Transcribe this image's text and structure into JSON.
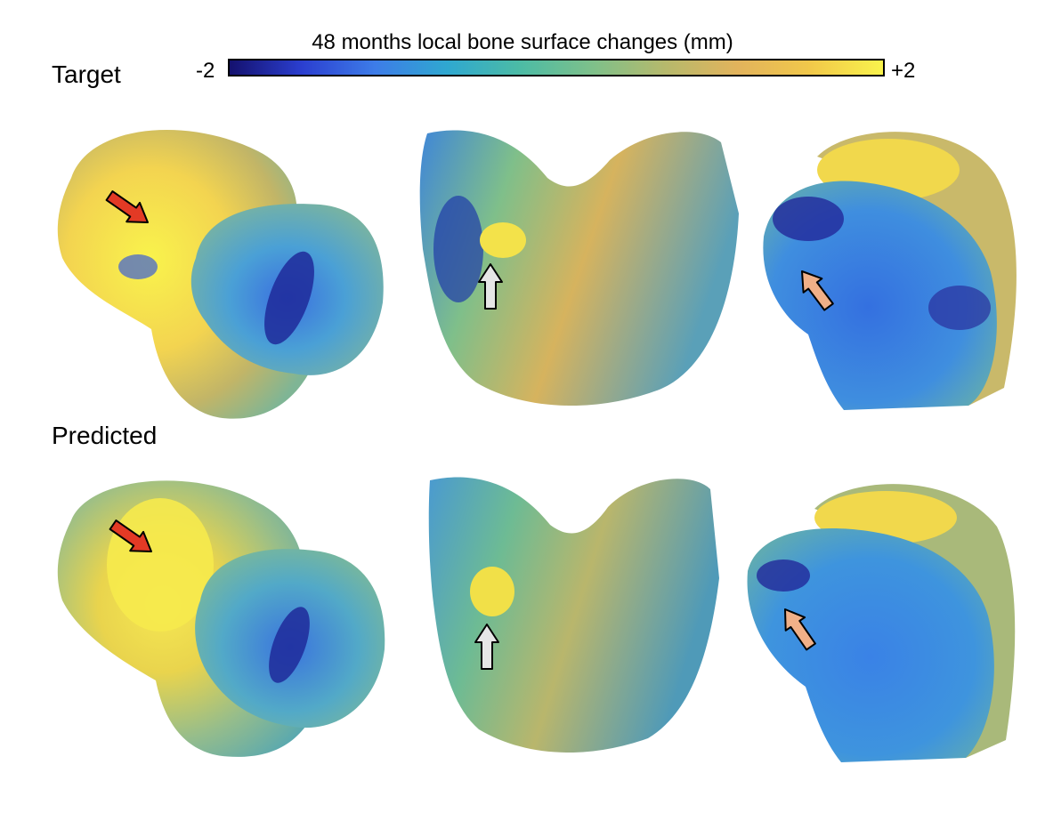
{
  "figure": {
    "colorbar": {
      "title": "48 months local bone surface changes (mm)",
      "min_label": "-2",
      "max_label": "+2",
      "colors": [
        "#14116e",
        "#2b3fd0",
        "#3d7ce8",
        "#2fa8d0",
        "#4cbba5",
        "#7ec08a",
        "#b6b96c",
        "#e2b35c",
        "#f1c84a",
        "#f9f34c"
      ]
    },
    "rows": [
      {
        "label": "Target"
      },
      {
        "label": "Predicted"
      }
    ],
    "arrows": {
      "view1_color": "#e33a25",
      "view2_color": "#e6e6e6",
      "view3_color": "#f0b088"
    }
  }
}
